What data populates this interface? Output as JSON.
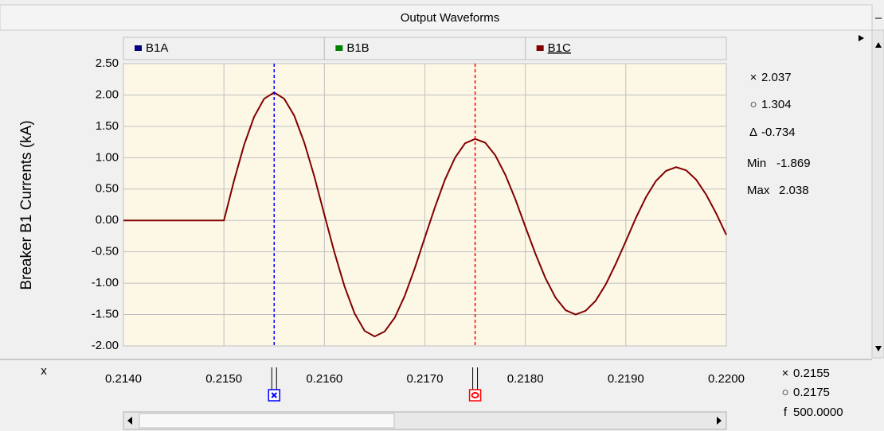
{
  "chart_data": {
    "type": "line",
    "title": "Output Waveforms",
    "ylabel": "Breaker B1  Currents (kA)",
    "xlabel": "x",
    "x": [
      0.214,
      0.2141,
      0.2142,
      0.2143,
      0.2144,
      0.2145,
      0.2146,
      0.2147,
      0.2148,
      0.2149,
      0.215,
      0.2151,
      0.2152,
      0.2153,
      0.2154,
      0.2155,
      0.2156,
      0.2157,
      0.2158,
      0.2159,
      0.216,
      0.2161,
      0.2162,
      0.2163,
      0.2164,
      0.2165,
      0.2166,
      0.2167,
      0.2168,
      0.2169,
      0.217,
      0.2171,
      0.2172,
      0.2173,
      0.2174,
      0.2175,
      0.2176,
      0.2177,
      0.2178,
      0.2179,
      0.218,
      0.2181,
      0.2182,
      0.2183,
      0.2184,
      0.2185,
      0.2186,
      0.2187,
      0.2188,
      0.2189,
      0.219,
      0.2191,
      0.2192,
      0.2193,
      0.2194,
      0.2195,
      0.2196,
      0.2197,
      0.2198,
      0.2199,
      0.22
    ],
    "xlim": [
      0.214,
      0.22
    ],
    "xticks": [
      {
        "value": 0.214,
        "label": "0.2140"
      },
      {
        "value": 0.215,
        "label": "0.2150"
      },
      {
        "value": 0.216,
        "label": "0.2160"
      },
      {
        "value": 0.217,
        "label": "0.2170"
      },
      {
        "value": 0.218,
        "label": "0.2180"
      },
      {
        "value": 0.219,
        "label": "0.2190"
      },
      {
        "value": 0.22,
        "label": "0.2200"
      }
    ],
    "ylim": [
      -2,
      2.5
    ],
    "yticks": [
      {
        "value": 2.5,
        "label": "2.50"
      },
      {
        "value": 2,
        "label": "2.00"
      },
      {
        "value": 1.5,
        "label": "1.50"
      },
      {
        "value": 1,
        "label": "1.00"
      },
      {
        "value": 0.5,
        "label": "0.50"
      },
      {
        "value": 0,
        "label": "0.00"
      },
      {
        "value": -0.5,
        "label": "-0.50"
      },
      {
        "value": -1,
        "label": "-1.00"
      },
      {
        "value": -1.5,
        "label": "-1.50"
      },
      {
        "value": -2,
        "label": "-2.00"
      }
    ],
    "grid": true,
    "series": [
      {
        "name": "B1A",
        "color": "#000080"
      },
      {
        "name": "B1B",
        "color": "#008000"
      },
      {
        "name": "B1C",
        "color": "#800000",
        "values": [
          0,
          0,
          0,
          0,
          0,
          0,
          0,
          0,
          0,
          0,
          0,
          0.63,
          1.2,
          1.65,
          1.94,
          2.04,
          1.94,
          1.67,
          1.24,
          0.7,
          0.09,
          -0.51,
          -1.05,
          -1.48,
          -1.76,
          -1.85,
          -1.77,
          -1.55,
          -1.2,
          -0.76,
          -0.27,
          0.21,
          0.65,
          1,
          1.23,
          1.3,
          1.24,
          1.04,
          0.73,
          0.34,
          -0.1,
          -0.53,
          -0.92,
          -1.23,
          -1.43,
          -1.5,
          -1.44,
          -1.28,
          -1.02,
          -0.69,
          -0.33,
          0.04,
          0.37,
          0.63,
          0.79,
          0.85,
          0.8,
          0.65,
          0.41,
          0.11,
          -0.23
        ]
      }
    ],
    "cursors": [
      {
        "symbol": "×",
        "x": 0.2155,
        "y": 2.037,
        "color": "#0000ff"
      },
      {
        "symbol": "○",
        "x": 0.2175,
        "y": 1.304,
        "color": "#ff0000"
      }
    ],
    "delta": {
      "symbol": "Δ",
      "value": -0.734
    },
    "min": {
      "label": "Min",
      "value": -1.869
    },
    "max": {
      "label": "Max",
      "value": 2.038
    },
    "frequency": {
      "label": "f",
      "value": {
        "value": 500,
        "label": "500.0000"
      }
    }
  }
}
